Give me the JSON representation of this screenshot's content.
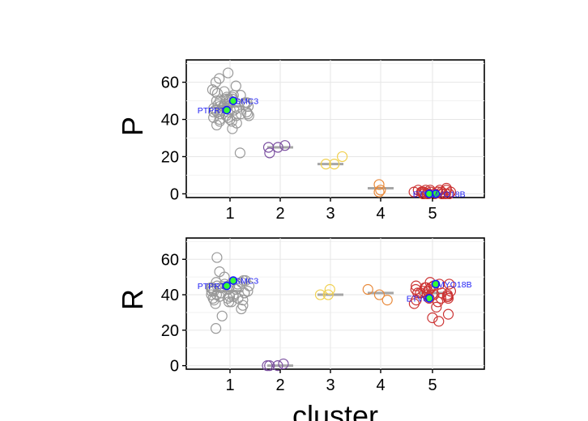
{
  "chart_data": [
    {
      "type": "scatter",
      "panel": "P",
      "ylabel": "P",
      "xlabel": "",
      "categories": [
        "1",
        "2",
        "3",
        "4",
        "5"
      ],
      "ylim": [
        -2,
        72
      ],
      "yticks": [
        "0",
        "20",
        "40",
        "60"
      ],
      "grid": true,
      "colors": {
        "1": "#999999",
        "2": "#7b4fa0",
        "3": "#f0d050",
        "4": "#e8893a",
        "5": "#cc3333"
      },
      "cluster_medians": [
        47,
        25,
        16,
        3,
        0
      ],
      "points": {
        "1": [
          49,
          52,
          55,
          50,
          47,
          45,
          44,
          48,
          53,
          51,
          46,
          43,
          42,
          41,
          40,
          39,
          38,
          37,
          35,
          50,
          54,
          56,
          49,
          47,
          45,
          44,
          43,
          48,
          52,
          51,
          46,
          45,
          44,
          42,
          41,
          40,
          39,
          47,
          50,
          53,
          55,
          48,
          46,
          44,
          43,
          49,
          51,
          47,
          45,
          42,
          22,
          58,
          60,
          62,
          65
        ],
        "2": [
          22,
          25,
          25,
          26
        ],
        "3": [
          16,
          20,
          16
        ],
        "4": [
          5,
          2,
          1
        ],
        "5": [
          0,
          1,
          2,
          0,
          1,
          0,
          2,
          1,
          0,
          3,
          1,
          0,
          2,
          0,
          1,
          0,
          1,
          2,
          0,
          1,
          0,
          2,
          1,
          0
        ]
      },
      "highlighted": [
        {
          "gene": "SMC3",
          "cluster": "1",
          "y": 50
        },
        {
          "gene": "PTPRT",
          "cluster": "1",
          "y": 45
        },
        {
          "gene": "ETV6",
          "cluster": "5",
          "y": 0
        },
        {
          "gene": "MYO18B",
          "cluster": "5",
          "y": 0
        }
      ]
    },
    {
      "type": "scatter",
      "panel": "R",
      "ylabel": "R",
      "xlabel": "cluster",
      "categories": [
        "1",
        "2",
        "3",
        "4",
        "5"
      ],
      "ylim": [
        -2,
        72
      ],
      "yticks": [
        "0",
        "20",
        "40",
        "60"
      ],
      "grid": true,
      "colors": {
        "1": "#999999",
        "2": "#7b4fa0",
        "3": "#f0d050",
        "4": "#e8893a",
        "5": "#cc3333"
      },
      "cluster_medians": [
        42,
        0,
        40,
        41,
        41
      ],
      "points": {
        "1": [
          42,
          44,
          46,
          40,
          38,
          37,
          45,
          43,
          41,
          39,
          36,
          35,
          47,
          48,
          44,
          42,
          40,
          38,
          46,
          43,
          41,
          39,
          37,
          45,
          44,
          42,
          40,
          36,
          34,
          48,
          47,
          45,
          43,
          41,
          39,
          38,
          50,
          53,
          28,
          32,
          21,
          61
        ],
        "2": [
          0,
          1,
          0,
          0
        ],
        "3": [
          40,
          43,
          40
        ],
        "4": [
          43,
          37,
          40
        ],
        "5": [
          41,
          44,
          46,
          38,
          36,
          42,
          40,
          45,
          39,
          37,
          43,
          41,
          44,
          35,
          33,
          47,
          42,
          40,
          38,
          45,
          43,
          41,
          39,
          25,
          27,
          29,
          46,
          44,
          42,
          40,
          38
        ]
      },
      "highlighted": [
        {
          "gene": "SMC3",
          "cluster": "1",
          "y": 48
        },
        {
          "gene": "PTPRT",
          "cluster": "1",
          "y": 45
        },
        {
          "gene": "MYO18B",
          "cluster": "5",
          "y": 46
        },
        {
          "gene": "ETV6",
          "cluster": "5",
          "y": 38
        }
      ]
    }
  ]
}
